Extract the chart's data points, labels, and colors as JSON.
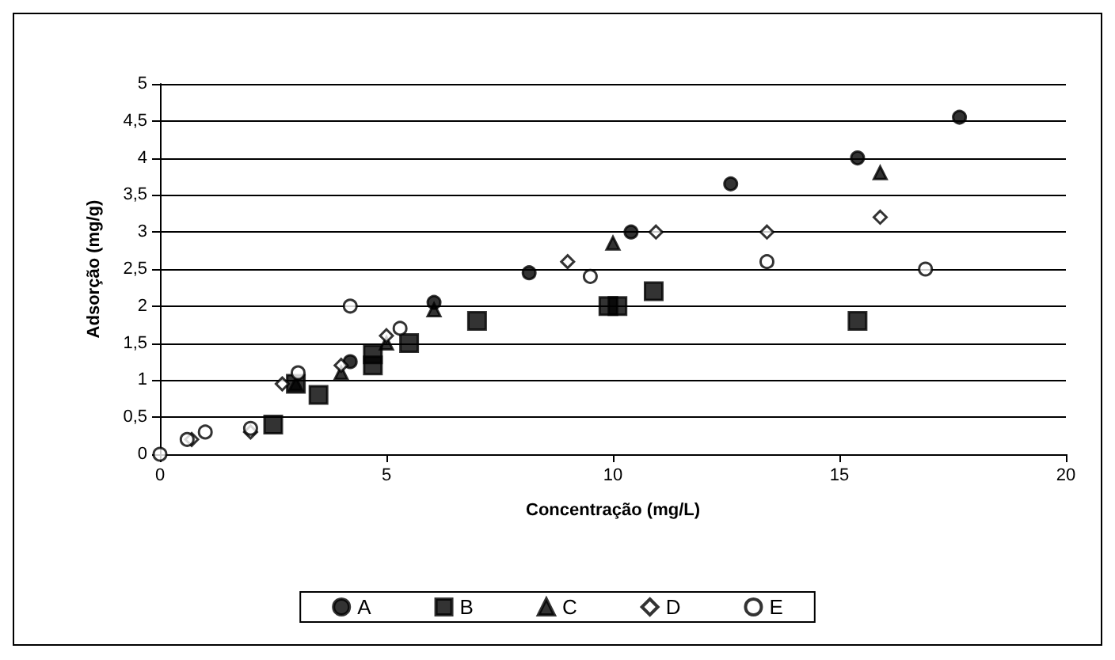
{
  "chart_data": {
    "type": "scatter",
    "xlabel": "Concentração (mg/L)",
    "ylabel": "Adsorção (mg/g)",
    "xlim": [
      0,
      20
    ],
    "xticks": [
      0,
      5,
      10,
      15,
      20
    ],
    "ylim": [
      0,
      5
    ],
    "yticks": [
      0,
      {
        "value": 0.5,
        "label": "0,5"
      },
      1,
      {
        "value": 1.5,
        "label": "1,5"
      },
      2,
      {
        "value": 2.5,
        "label": "2,5"
      },
      3,
      {
        "value": 3.5,
        "label": "3,5"
      },
      4,
      {
        "value": 4.5,
        "label": "4,5"
      },
      5
    ],
    "grid": "y",
    "legend": "bottom",
    "series": [
      {
        "name": "A",
        "color": "#000000",
        "marker": "circle",
        "x": [
          4.2,
          6.05,
          8.15,
          10.4,
          12.6,
          15.4,
          17.65
        ],
        "values": [
          1.25,
          2.05,
          2.45,
          3.0,
          3.65,
          4.0,
          4.55
        ]
      },
      {
        "name": "B",
        "color": "#000000",
        "marker": "square",
        "x": [
          2.5,
          3.0,
          3.5,
          4.7,
          4.7,
          5.5,
          7.0,
          9.9,
          10.1,
          10.9,
          15.4
        ],
        "values": [
          0.4,
          0.95,
          0.8,
          1.35,
          1.2,
          1.5,
          1.8,
          2.0,
          2.0,
          2.2,
          1.8
        ]
      },
      {
        "name": "C",
        "color": "#000000",
        "marker": "triangle",
        "x": [
          3.0,
          4.0,
          5.0,
          6.05,
          10.0,
          15.9
        ],
        "values": [
          0.95,
          1.1,
          1.5,
          1.95,
          2.85,
          3.8
        ]
      },
      {
        "name": "D",
        "color": "#ffffff",
        "marker": "diamond",
        "x": [
          0.7,
          2.0,
          2.7,
          4.0,
          5.0,
          9.0,
          10.95,
          13.4,
          15.9
        ],
        "values": [
          0.2,
          0.3,
          0.95,
          1.2,
          1.6,
          2.6,
          3.0,
          3.0,
          3.2
        ]
      },
      {
        "name": "E",
        "color": "#ffffff",
        "marker": "circle",
        "x": [
          0,
          0.6,
          1.0,
          2.0,
          3.05,
          4.2,
          5.3,
          9.5,
          13.4,
          16.9
        ],
        "values": [
          0,
          0.2,
          0.3,
          0.35,
          1.1,
          2.0,
          1.7,
          2.4,
          2.6,
          2.5
        ]
      }
    ]
  }
}
